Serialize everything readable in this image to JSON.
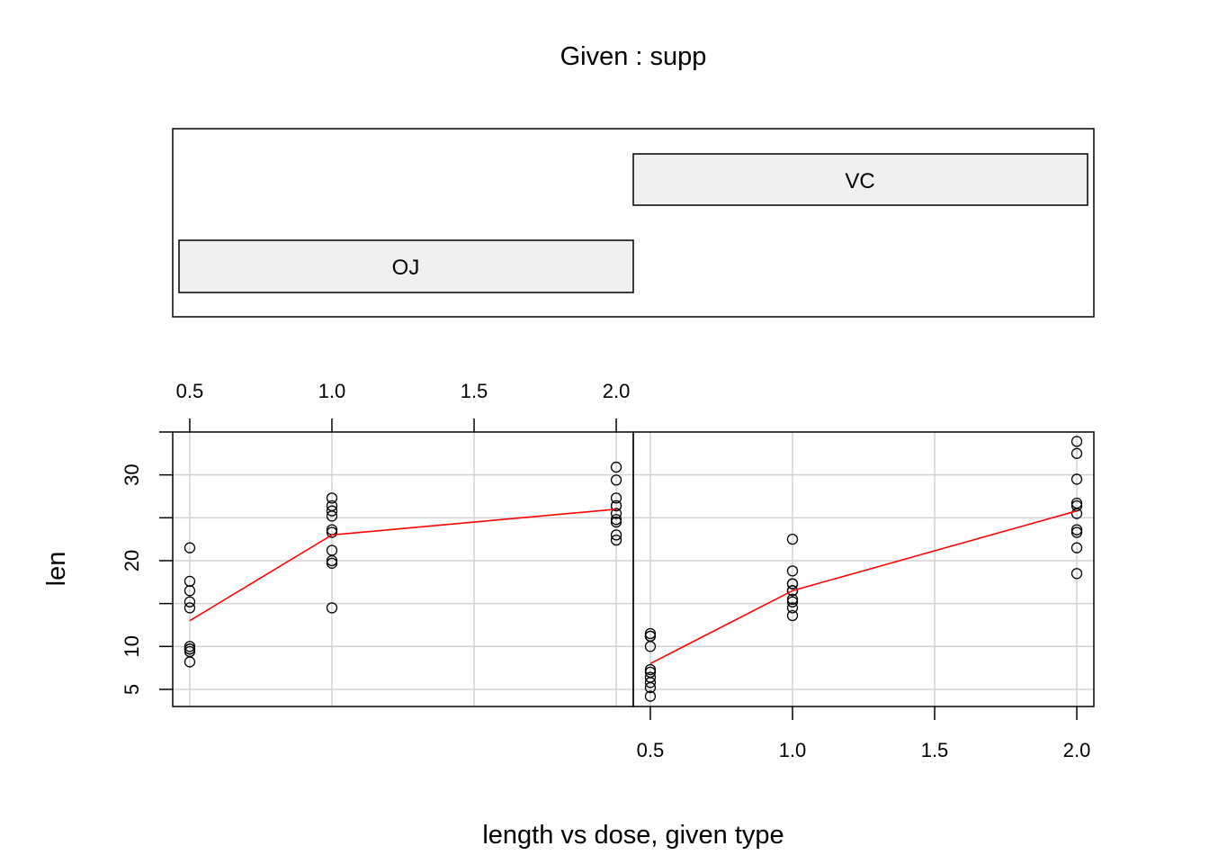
{
  "chart_data": {
    "type": "scatter",
    "plot_kind": "coplot",
    "title": "Given : supp",
    "xlabel": "length vs dose, given type",
    "ylabel": "len",
    "xlim": [
      0.44,
      2.06
    ],
    "ylim": [
      3.0,
      35.0
    ],
    "x_ticks": [
      "0.5",
      "1.0",
      "1.5",
      "2.0"
    ],
    "x_tick_values": [
      0.5,
      1.0,
      1.5,
      2.0
    ],
    "y_ticks": [
      "5",
      "10",
      "20",
      "30"
    ],
    "y_tick_values": [
      5,
      10,
      20,
      30
    ],
    "y_grid_values": [
      5,
      10,
      15,
      20,
      25,
      30
    ],
    "grid": true,
    "line_color": "#ff0000",
    "point_color": "#000000",
    "grid_color": "#d3d3d3",
    "strip_fill": "#f0f0f0",
    "given": {
      "levels": [
        "OJ",
        "VC"
      ]
    },
    "panels": [
      {
        "name": "OJ",
        "points": [
          {
            "x": 0.5,
            "y": [
              15.2,
              21.5,
              17.6,
              9.7,
              14.5,
              10.0,
              8.2,
              9.4,
              16.5,
              9.7
            ]
          },
          {
            "x": 1.0,
            "y": [
              19.7,
              23.3,
              23.6,
              26.4,
              20.0,
              25.2,
              25.8,
              21.2,
              14.5,
              27.3
            ]
          },
          {
            "x": 2.0,
            "y": [
              25.5,
              26.4,
              22.4,
              24.5,
              24.8,
              30.9,
              26.4,
              27.3,
              29.4,
              23.0
            ]
          }
        ],
        "smooth": [
          {
            "x": 0.5,
            "y": 13.0
          },
          {
            "x": 1.0,
            "y": 23.0
          },
          {
            "x": 2.0,
            "y": 26.0
          }
        ]
      },
      {
        "name": "VC",
        "points": [
          {
            "x": 0.5,
            "y": [
              4.2,
              11.5,
              7.3,
              5.8,
              6.4,
              10.0,
              11.2,
              11.2,
              5.2,
              7.0
            ]
          },
          {
            "x": 1.0,
            "y": [
              16.5,
              16.5,
              15.2,
              17.3,
              22.5,
              17.3,
              13.6,
              14.5,
              18.8,
              15.5
            ]
          },
          {
            "x": 2.0,
            "y": [
              23.6,
              18.5,
              33.9,
              25.5,
              26.4,
              32.5,
              26.7,
              21.5,
              23.3,
              29.5
            ]
          }
        ],
        "smooth": [
          {
            "x": 0.5,
            "y": 8.0
          },
          {
            "x": 1.0,
            "y": 16.5
          },
          {
            "x": 2.0,
            "y": 25.8
          }
        ]
      }
    ]
  }
}
